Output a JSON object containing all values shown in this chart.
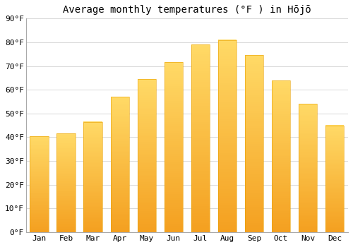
{
  "months": [
    "Jan",
    "Feb",
    "Mar",
    "Apr",
    "May",
    "Jun",
    "Jul",
    "Aug",
    "Sep",
    "Oct",
    "Nov",
    "Dec"
  ],
  "values": [
    40.5,
    41.5,
    46.5,
    57,
    64.5,
    71.5,
    79,
    81,
    74.5,
    64,
    54,
    45
  ],
  "title": "Average monthly temperatures (°F ) in Hōjō",
  "ylabel_ticks": [
    "0°F",
    "10°F",
    "20°F",
    "30°F",
    "40°F",
    "50°F",
    "60°F",
    "70°F",
    "80°F",
    "90°F"
  ],
  "ytick_values": [
    0,
    10,
    20,
    30,
    40,
    50,
    60,
    70,
    80,
    90
  ],
  "ylim": [
    0,
    90
  ],
  "bar_color_top": "#FFD966",
  "bar_color_bottom": "#F4A020",
  "bg_color": "#ffffff",
  "grid_color": "#d8d8d8",
  "title_fontsize": 10,
  "tick_fontsize": 8,
  "bar_width": 0.7
}
